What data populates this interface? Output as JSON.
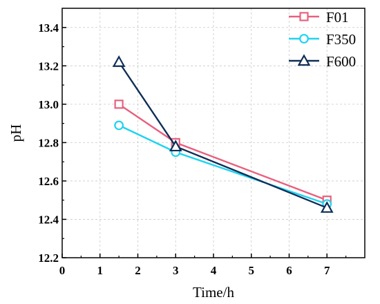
{
  "chart_data": {
    "type": "line",
    "xlabel": "Time/h",
    "ylabel": "pH",
    "xlim": [
      0,
      8
    ],
    "ylim": [
      12.2,
      13.5
    ],
    "x_ticks": [
      "0",
      "1",
      "2",
      "3",
      "4",
      "5",
      "6",
      "7"
    ],
    "y_ticks": [
      "12.2",
      "12.4",
      "12.6",
      "12.8",
      "13.0",
      "13.2",
      "13.4"
    ],
    "grid": true,
    "legend_position": "top-right",
    "series": [
      {
        "name": "F01",
        "marker": "square",
        "color": "#e8607e",
        "x": [
          1.5,
          3,
          7
        ],
        "y": [
          13.0,
          12.8,
          12.5
        ]
      },
      {
        "name": "F350",
        "marker": "circle",
        "color": "#1ed3f0",
        "x": [
          1.5,
          3,
          7
        ],
        "y": [
          12.89,
          12.75,
          12.48
        ]
      },
      {
        "name": "F600",
        "marker": "triangle",
        "color": "#0f2e57",
        "x": [
          1.5,
          3,
          7
        ],
        "y": [
          13.22,
          12.78,
          12.46
        ]
      }
    ]
  }
}
